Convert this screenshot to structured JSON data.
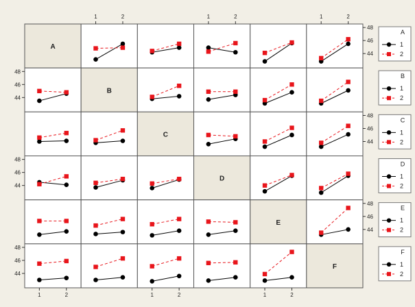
{
  "chart_data": {
    "type": "interaction-plot-matrix",
    "factors": [
      "A",
      "B",
      "C",
      "D",
      "E",
      "F"
    ],
    "levels": [
      1,
      2
    ],
    "ylim": [
      42.6,
      48
    ],
    "y_ticks": [
      44,
      46,
      48
    ],
    "x_ticks": [
      1,
      2
    ],
    "legend_levels": [
      "1",
      "2"
    ],
    "series_colors": {
      "1": "#000000",
      "2": "#e8151b"
    },
    "panel_background": "#ffffff",
    "diagonal_background": "#ece8dc",
    "page_background": "#f2efe6",
    "panels": [
      {
        "row": "A",
        "col": "B",
        "series": [
          {
            "level": "1",
            "values": [
              43.1,
              45.5
            ]
          },
          {
            "level": "2",
            "values": [
              44.8,
              44.9
            ]
          }
        ]
      },
      {
        "row": "A",
        "col": "C",
        "series": [
          {
            "level": "1",
            "values": [
              44.2,
              44.9
            ]
          },
          {
            "level": "2",
            "values": [
              44.4,
              45.5
            ]
          }
        ]
      },
      {
        "row": "A",
        "col": "D",
        "series": [
          {
            "level": "1",
            "values": [
              44.9,
              44.2
            ]
          },
          {
            "level": "2",
            "values": [
              44.3,
              45.6
            ]
          }
        ]
      },
      {
        "row": "A",
        "col": "E",
        "series": [
          {
            "level": "1",
            "values": [
              42.8,
              45.6
            ]
          },
          {
            "level": "2",
            "values": [
              44.1,
              45.7
            ]
          }
        ]
      },
      {
        "row": "A",
        "col": "F",
        "series": [
          {
            "level": "1",
            "values": [
              42.8,
              45.5
            ]
          },
          {
            "level": "2",
            "values": [
              43.3,
              46.2
            ]
          }
        ]
      },
      {
        "row": "B",
        "col": "A",
        "series": [
          {
            "level": "1",
            "values": [
              43.5,
              44.6
            ]
          },
          {
            "level": "2",
            "values": [
              45.0,
              44.8
            ]
          }
        ]
      },
      {
        "row": "B",
        "col": "C",
        "series": [
          {
            "level": "1",
            "values": [
              43.8,
              44.2
            ]
          },
          {
            "level": "2",
            "values": [
              44.1,
              45.8
            ]
          }
        ]
      },
      {
        "row": "B",
        "col": "D",
        "series": [
          {
            "level": "1",
            "values": [
              43.7,
              44.4
            ]
          },
          {
            "level": "2",
            "values": [
              44.9,
              44.9
            ]
          }
        ]
      },
      {
        "row": "B",
        "col": "E",
        "series": [
          {
            "level": "1",
            "values": [
              43.1,
              44.8
            ]
          },
          {
            "level": "2",
            "values": [
              43.6,
              46.0
            ]
          }
        ]
      },
      {
        "row": "B",
        "col": "F",
        "series": [
          {
            "level": "1",
            "values": [
              43.1,
              45.1
            ]
          },
          {
            "level": "2",
            "values": [
              43.5,
              46.4
            ]
          }
        ]
      },
      {
        "row": "C",
        "col": "A",
        "series": [
          {
            "level": "1",
            "values": [
              44.0,
              44.1
            ]
          },
          {
            "level": "2",
            "values": [
              44.6,
              45.3
            ]
          }
        ]
      },
      {
        "row": "C",
        "col": "B",
        "series": [
          {
            "level": "1",
            "values": [
              43.8,
              44.1
            ]
          },
          {
            "level": "2",
            "values": [
              44.2,
              45.7
            ]
          }
        ]
      },
      {
        "row": "C",
        "col": "D",
        "series": [
          {
            "level": "1",
            "values": [
              43.6,
              44.4
            ]
          },
          {
            "level": "2",
            "values": [
              45.0,
              44.8
            ]
          }
        ]
      },
      {
        "row": "C",
        "col": "E",
        "series": [
          {
            "level": "1",
            "values": [
              43.2,
              45.0
            ]
          },
          {
            "level": "2",
            "values": [
              44.0,
              46.1
            ]
          }
        ]
      },
      {
        "row": "C",
        "col": "F",
        "series": [
          {
            "level": "1",
            "values": [
              43.2,
              45.1
            ]
          },
          {
            "level": "2",
            "values": [
              43.8,
              46.4
            ]
          }
        ]
      },
      {
        "row": "D",
        "col": "A",
        "series": [
          {
            "level": "1",
            "values": [
              44.5,
              44.1
            ]
          },
          {
            "level": "2",
            "values": [
              44.2,
              45.4
            ]
          }
        ]
      },
      {
        "row": "D",
        "col": "B",
        "series": [
          {
            "level": "1",
            "values": [
              43.7,
              44.8
            ]
          },
          {
            "level": "2",
            "values": [
              44.4,
              45.0
            ]
          }
        ]
      },
      {
        "row": "D",
        "col": "C",
        "series": [
          {
            "level": "1",
            "values": [
              43.6,
              44.9
            ]
          },
          {
            "level": "2",
            "values": [
              44.3,
              45.0
            ]
          }
        ]
      },
      {
        "row": "D",
        "col": "E",
        "series": [
          {
            "level": "1",
            "values": [
              43.1,
              45.5
            ]
          },
          {
            "level": "2",
            "values": [
              44.0,
              45.6
            ]
          }
        ]
      },
      {
        "row": "D",
        "col": "F",
        "series": [
          {
            "level": "1",
            "values": [
              42.9,
              45.5
            ]
          },
          {
            "level": "2",
            "values": [
              43.6,
              45.8
            ]
          }
        ]
      },
      {
        "row": "E",
        "col": "A",
        "series": [
          {
            "level": "1",
            "values": [
              43.2,
              43.7
            ]
          },
          {
            "level": "2",
            "values": [
              45.3,
              45.3
            ]
          }
        ]
      },
      {
        "row": "E",
        "col": "B",
        "series": [
          {
            "level": "1",
            "values": [
              43.3,
              43.6
            ]
          },
          {
            "level": "2",
            "values": [
              44.6,
              45.6
            ]
          }
        ]
      },
      {
        "row": "E",
        "col": "C",
        "series": [
          {
            "level": "1",
            "values": [
              43.1,
              43.8
            ]
          },
          {
            "level": "2",
            "values": [
              44.8,
              45.6
            ]
          }
        ]
      },
      {
        "row": "E",
        "col": "D",
        "series": [
          {
            "level": "1",
            "values": [
              43.2,
              43.8
            ]
          },
          {
            "level": "2",
            "values": [
              45.2,
              45.1
            ]
          }
        ]
      },
      {
        "row": "E",
        "col": "F",
        "series": [
          {
            "level": "1",
            "values": [
              43.2,
              44.0
            ]
          },
          {
            "level": "2",
            "values": [
              43.5,
              47.3
            ]
          }
        ]
      },
      {
        "row": "F",
        "col": "A",
        "series": [
          {
            "level": "1",
            "values": [
              43.0,
              43.3
            ]
          },
          {
            "level": "2",
            "values": [
              45.5,
              45.9
            ]
          }
        ]
      },
      {
        "row": "F",
        "col": "B",
        "series": [
          {
            "level": "1",
            "values": [
              43.0,
              43.4
            ]
          },
          {
            "level": "2",
            "values": [
              45.0,
              46.3
            ]
          }
        ]
      },
      {
        "row": "F",
        "col": "C",
        "series": [
          {
            "level": "1",
            "values": [
              42.8,
              43.6
            ]
          },
          {
            "level": "2",
            "values": [
              45.1,
              46.3
            ]
          }
        ]
      },
      {
        "row": "F",
        "col": "D",
        "series": [
          {
            "level": "1",
            "values": [
              42.9,
              43.4
            ]
          },
          {
            "level": "2",
            "values": [
              45.6,
              45.7
            ]
          }
        ]
      },
      {
        "row": "F",
        "col": "E",
        "series": [
          {
            "level": "1",
            "values": [
              42.9,
              43.4
            ]
          },
          {
            "level": "2",
            "values": [
              43.9,
              47.3
            ]
          }
        ]
      }
    ]
  }
}
